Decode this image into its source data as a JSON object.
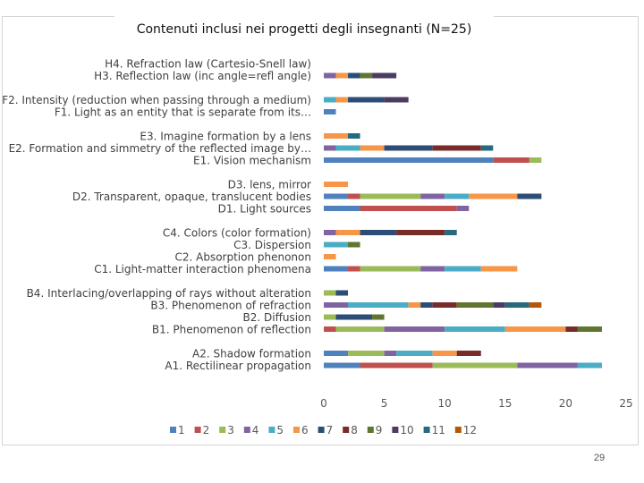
{
  "page": {
    "number": "29"
  },
  "chart_data": {
    "type": "bar",
    "orientation": "horizontal",
    "stacked": true,
    "title": "Contenuti inclusi nei progetti degli insegnanti (N=25)",
    "xlim": [
      0,
      25
    ],
    "xticks": [
      "0",
      "5",
      "10",
      "15",
      "20",
      "25"
    ],
    "grid": false,
    "legend_position": "bottom",
    "series": [
      {
        "name": "1",
        "color": "#4f81bd"
      },
      {
        "name": "2",
        "color": "#c0504d"
      },
      {
        "name": "3",
        "color": "#9bbb59"
      },
      {
        "name": "4",
        "color": "#8064a2"
      },
      {
        "name": "5",
        "color": "#4bacc6"
      },
      {
        "name": "6",
        "color": "#f79646"
      },
      {
        "name": "7",
        "color": "#2c4d75"
      },
      {
        "name": "8",
        "color": "#772c2a"
      },
      {
        "name": "9",
        "color": "#5f7530"
      },
      {
        "name": "10",
        "color": "#4d3b62"
      },
      {
        "name": "11",
        "color": "#276a7c"
      },
      {
        "name": "12",
        "color": "#b65708"
      }
    ],
    "categories": [
      {
        "label": "H4. Refraction law (Cartesio-Snell law)",
        "segments": []
      },
      {
        "label": "H3. Reflection law (inc angle=refl angle)",
        "segments": [
          [
            "4",
            1
          ],
          [
            "6",
            1
          ],
          [
            "7",
            1
          ],
          [
            "9",
            1
          ],
          [
            "10",
            2
          ]
        ]
      },
      {
        "label": "F2. Intensity (reduction when passing through a medium)",
        "segments": [
          [
            "5",
            1
          ],
          [
            "6",
            1
          ],
          [
            "7",
            3
          ],
          [
            "10",
            2
          ]
        ]
      },
      {
        "label": "F1. Light as an entity that is separate from its…",
        "segments": [
          [
            "1",
            1
          ]
        ]
      },
      {
        "label": "E3. Imagine formation by a lens",
        "segments": [
          [
            "6",
            2
          ],
          [
            "11",
            1
          ]
        ]
      },
      {
        "label": "E2. Formation and simmetry of the reflected image by…",
        "segments": [
          [
            "4",
            1
          ],
          [
            "5",
            2
          ],
          [
            "6",
            2
          ],
          [
            "7",
            4
          ],
          [
            "8",
            4
          ],
          [
            "11",
            1
          ]
        ]
      },
      {
        "label": "E1. Vision mechanism",
        "segments": [
          [
            "1",
            14
          ],
          [
            "2",
            3
          ],
          [
            "3",
            1
          ]
        ]
      },
      {
        "label": "D3. lens, mirror",
        "segments": [
          [
            "6",
            2
          ]
        ]
      },
      {
        "label": "D2. Transparent, opaque, translucent bodies",
        "segments": [
          [
            "1",
            2
          ],
          [
            "2",
            1
          ],
          [
            "3",
            5
          ],
          [
            "4",
            2
          ],
          [
            "5",
            2
          ],
          [
            "6",
            4
          ],
          [
            "7",
            2
          ]
        ]
      },
      {
        "label": "D1. Light sources",
        "segments": [
          [
            "1",
            3
          ],
          [
            "2",
            8
          ],
          [
            "4",
            1
          ]
        ]
      },
      {
        "label": "C4. Colors (color formation)",
        "segments": [
          [
            "4",
            1
          ],
          [
            "6",
            2
          ],
          [
            "7",
            3
          ],
          [
            "8",
            4
          ],
          [
            "11",
            1
          ]
        ]
      },
      {
        "label": "C3. Dispersion",
        "segments": [
          [
            "5",
            2
          ],
          [
            "9",
            1
          ]
        ]
      },
      {
        "label": "C2. Absorption phenonon",
        "segments": [
          [
            "6",
            1
          ]
        ]
      },
      {
        "label": "C1. Light-matter interaction phenomena",
        "segments": [
          [
            "1",
            2
          ],
          [
            "2",
            1
          ],
          [
            "3",
            5
          ],
          [
            "4",
            2
          ],
          [
            "5",
            3
          ],
          [
            "6",
            3
          ]
        ]
      },
      {
        "label": "B4. Interlacing/overlapping of rays without alteration",
        "segments": [
          [
            "3",
            1
          ],
          [
            "7",
            1
          ]
        ]
      },
      {
        "label": "B3. Phenomenon of refraction",
        "segments": [
          [
            "4",
            2
          ],
          [
            "5",
            5
          ],
          [
            "6",
            1
          ],
          [
            "7",
            1
          ],
          [
            "8",
            2
          ],
          [
            "9",
            3
          ],
          [
            "10",
            1
          ],
          [
            "11",
            2
          ],
          [
            "12",
            1
          ]
        ]
      },
      {
        "label": "B2. Diffusion",
        "segments": [
          [
            "3",
            1
          ],
          [
            "7",
            3
          ],
          [
            "9",
            1
          ]
        ]
      },
      {
        "label": "B1. Phenomenon of reflection",
        "segments": [
          [
            "2",
            1
          ],
          [
            "3",
            4
          ],
          [
            "4",
            5
          ],
          [
            "5",
            5
          ],
          [
            "6",
            5
          ],
          [
            "8",
            1
          ],
          [
            "9",
            2
          ]
        ]
      },
      {
        "label": "A2. Shadow formation",
        "segments": [
          [
            "1",
            2
          ],
          [
            "3",
            3
          ],
          [
            "4",
            1
          ],
          [
            "5",
            3
          ],
          [
            "6",
            2
          ],
          [
            "8",
            2
          ]
        ]
      },
      {
        "label": "A1. Rectilinear propagation",
        "segments": [
          [
            "1",
            3
          ],
          [
            "2",
            6
          ],
          [
            "3",
            7
          ],
          [
            "4",
            5
          ],
          [
            "5",
            2
          ]
        ]
      }
    ]
  }
}
